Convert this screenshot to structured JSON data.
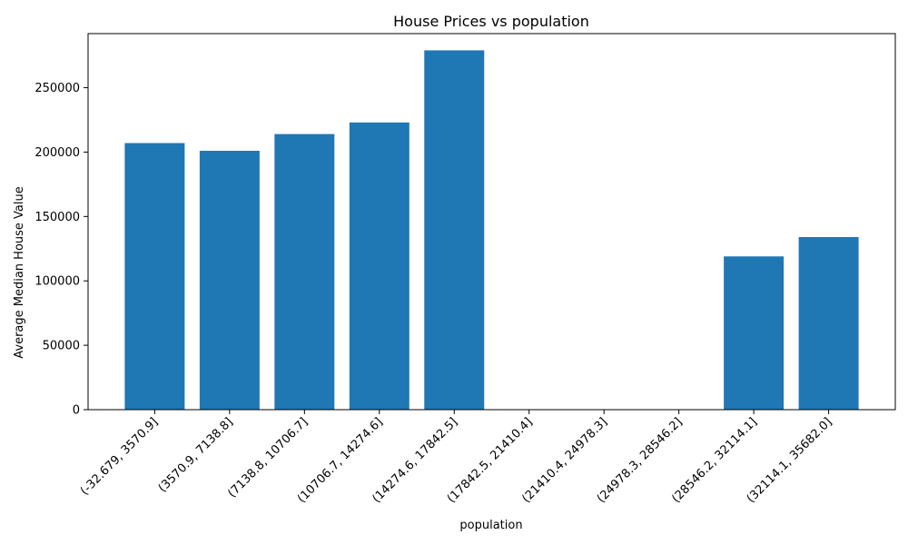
{
  "chart_data": {
    "type": "bar",
    "title": "House Prices vs population",
    "xlabel": "population",
    "ylabel": "Average Median House Value",
    "categories": [
      "(-32.679, 3570.9]",
      "(3570.9, 7138.8]",
      "(7138.8, 10706.7]",
      "(10706.7, 14274.6]",
      "(14274.6, 17842.5]",
      "(17842.5, 21410.4]",
      "(21410.4, 24978.3]",
      "(24978.3, 28546.2]",
      "(28546.2, 32114.1]",
      "(32114.1, 35682.0]"
    ],
    "values": [
      207000,
      201000,
      214000,
      223000,
      279000,
      0,
      0,
      0,
      119000,
      134000
    ],
    "ylim": [
      0,
      292000
    ],
    "yticks": [
      0,
      50000,
      100000,
      150000,
      200000,
      250000
    ],
    "grid": false,
    "bar_color": "#1f77b4"
  }
}
